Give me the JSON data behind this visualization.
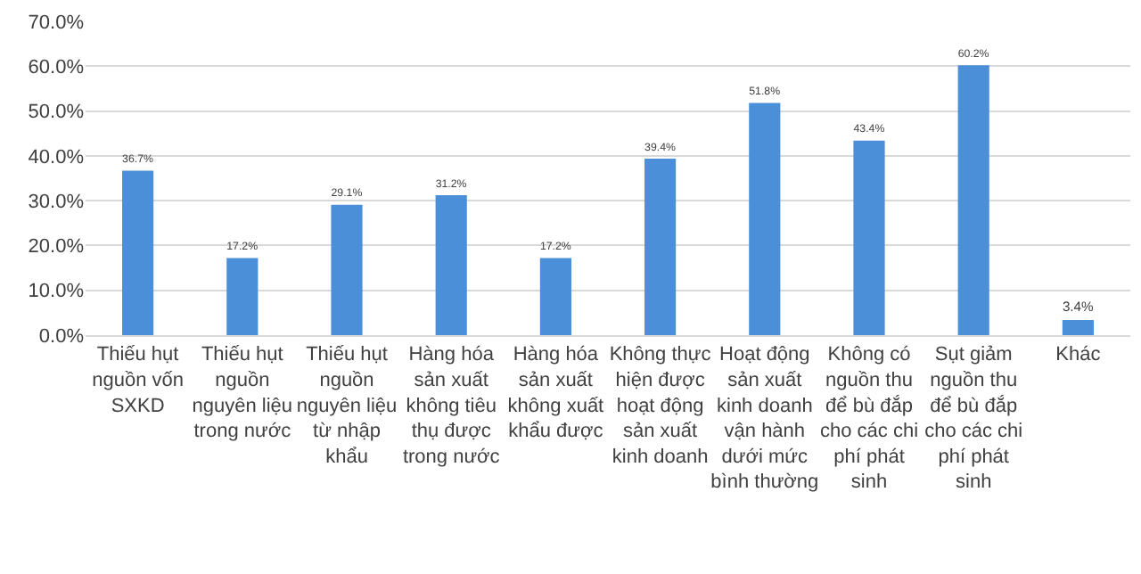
{
  "chart_data": {
    "type": "bar",
    "categories": [
      "Thiếu hụt nguồn vốn SXKD",
      "Thiếu hụt nguồn nguyên liệu trong nước",
      "Thiếu hụt nguồn nguyên liệu từ nhập khẩu",
      "Hàng hóa sản xuất không tiêu thụ được trong nước",
      "Hàng hóa sản xuất không xuất khẩu được",
      "Không thực hiện được hoạt động sản xuất kinh doanh",
      "Hoạt động sản xuất kinh doanh vận hành dưới mức bình thường",
      "Không có nguồn thu để bù đắp cho các chi phí phát sinh",
      "Sụt giảm nguồn thu để bù đắp cho các chi phí phát sinh",
      "Khác"
    ],
    "values": [
      36.7,
      17.2,
      29.1,
      31.2,
      17.2,
      39.4,
      51.8,
      43.4,
      60.2,
      3.4
    ],
    "value_labels": [
      "36.7%",
      "17.2%",
      "29.1%",
      "31.2%",
      "17.2%",
      "39.4%",
      "51.8%",
      "43.4%",
      "60.2%",
      "3.4%"
    ],
    "color": "#4a8fd8",
    "ylim": [
      0,
      70
    ],
    "yticks": [
      {
        "value": 0,
        "label": "0.0%"
      },
      {
        "value": 10,
        "label": "10.0%"
      },
      {
        "value": 20,
        "label": "20.0%"
      },
      {
        "value": 30,
        "label": "30.0%"
      },
      {
        "value": 40,
        "label": "40.0%"
      },
      {
        "value": 50,
        "label": "50.0%"
      },
      {
        "value": 60,
        "label": "60.0%"
      },
      {
        "value": 70,
        "label": "70.0%"
      }
    ],
    "grid": true
  }
}
